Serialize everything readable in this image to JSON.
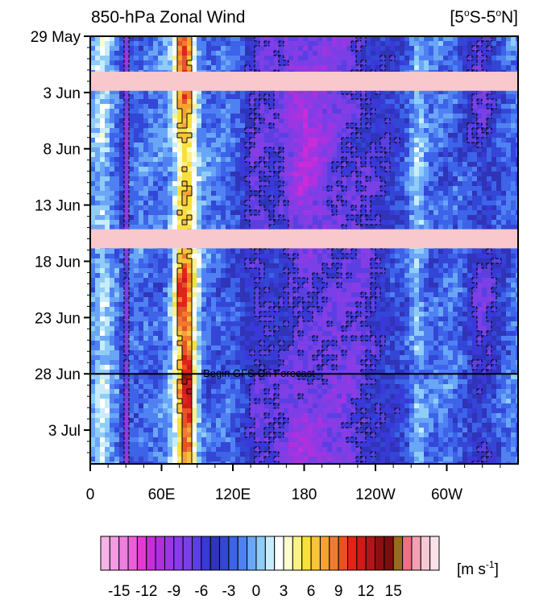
{
  "chart_data": {
    "type": "heatmap",
    "title": "850-hPa Zonal Wind",
    "region": {
      "pre": "[5",
      "sup1": "o",
      "mid": "S-5",
      "sup2": "o",
      "post": "N]"
    },
    "y_ticks": [
      "29 May",
      "3 Jun",
      "8 Jun",
      "13 Jun",
      "18 Jun",
      "23 Jun",
      "28 Jun",
      "3 Jul"
    ],
    "y_range": [
      "29 May",
      "6 Jul"
    ],
    "x_ticks": [
      "0",
      "60E",
      "120E",
      "180",
      "120W",
      "60W"
    ],
    "x_range_deg_east": [
      0,
      360
    ],
    "missing_bands": [
      [
        "1 Jun",
        "2 Jun"
      ],
      [
        "15 Jun",
        "16 Jun"
      ]
    ],
    "annotation": {
      "text": "Begin GFS On Forecast",
      "date": "28 Jun"
    },
    "colorbar": {
      "unit": {
        "pre": "[m s",
        "sup": "-1",
        "post": "]"
      },
      "ticks": [
        "-15",
        "-12",
        "-9",
        "-6",
        "-3",
        "0",
        "3",
        "6",
        "9",
        "12",
        "15"
      ],
      "levels": [
        -16,
        -15,
        -14,
        -13,
        -12,
        -11,
        -10,
        -9,
        -8,
        -7,
        -6,
        -5,
        -4,
        -3,
        -2,
        -1,
        0,
        1,
        2,
        3,
        4,
        5,
        6,
        7,
        8,
        9,
        10,
        11,
        12,
        13,
        14,
        15,
        16
      ],
      "colors": [
        "#f6b3e8",
        "#f39be3",
        "#ee7fdd",
        "#ea5fd8",
        "#e13ad6",
        "#c92cd9",
        "#b22fde",
        "#9c36e2",
        "#873ce5",
        "#7a3fe6",
        "#5b3fe3",
        "#3a38d8",
        "#2f34b8",
        "#3346d6",
        "#3c63e8",
        "#5081f3",
        "#6aa6f6",
        "#8fcdf8",
        "#c9ecfb",
        "#ffffff",
        "#fdfbd0",
        "#fbf08a",
        "#f8e03c",
        "#f7c338",
        "#f6a233",
        "#f07b2d",
        "#ea5125",
        "#e2231c",
        "#d01a1a",
        "#b0151a",
        "#8c1010",
        "#7a0e0e",
        "#9a6a1a",
        "#f06f84",
        "#f4a0b4",
        "#f8c9d4",
        "#fbe2e8"
      ]
    },
    "contours": "dashed for negative, solid for positive"
  }
}
